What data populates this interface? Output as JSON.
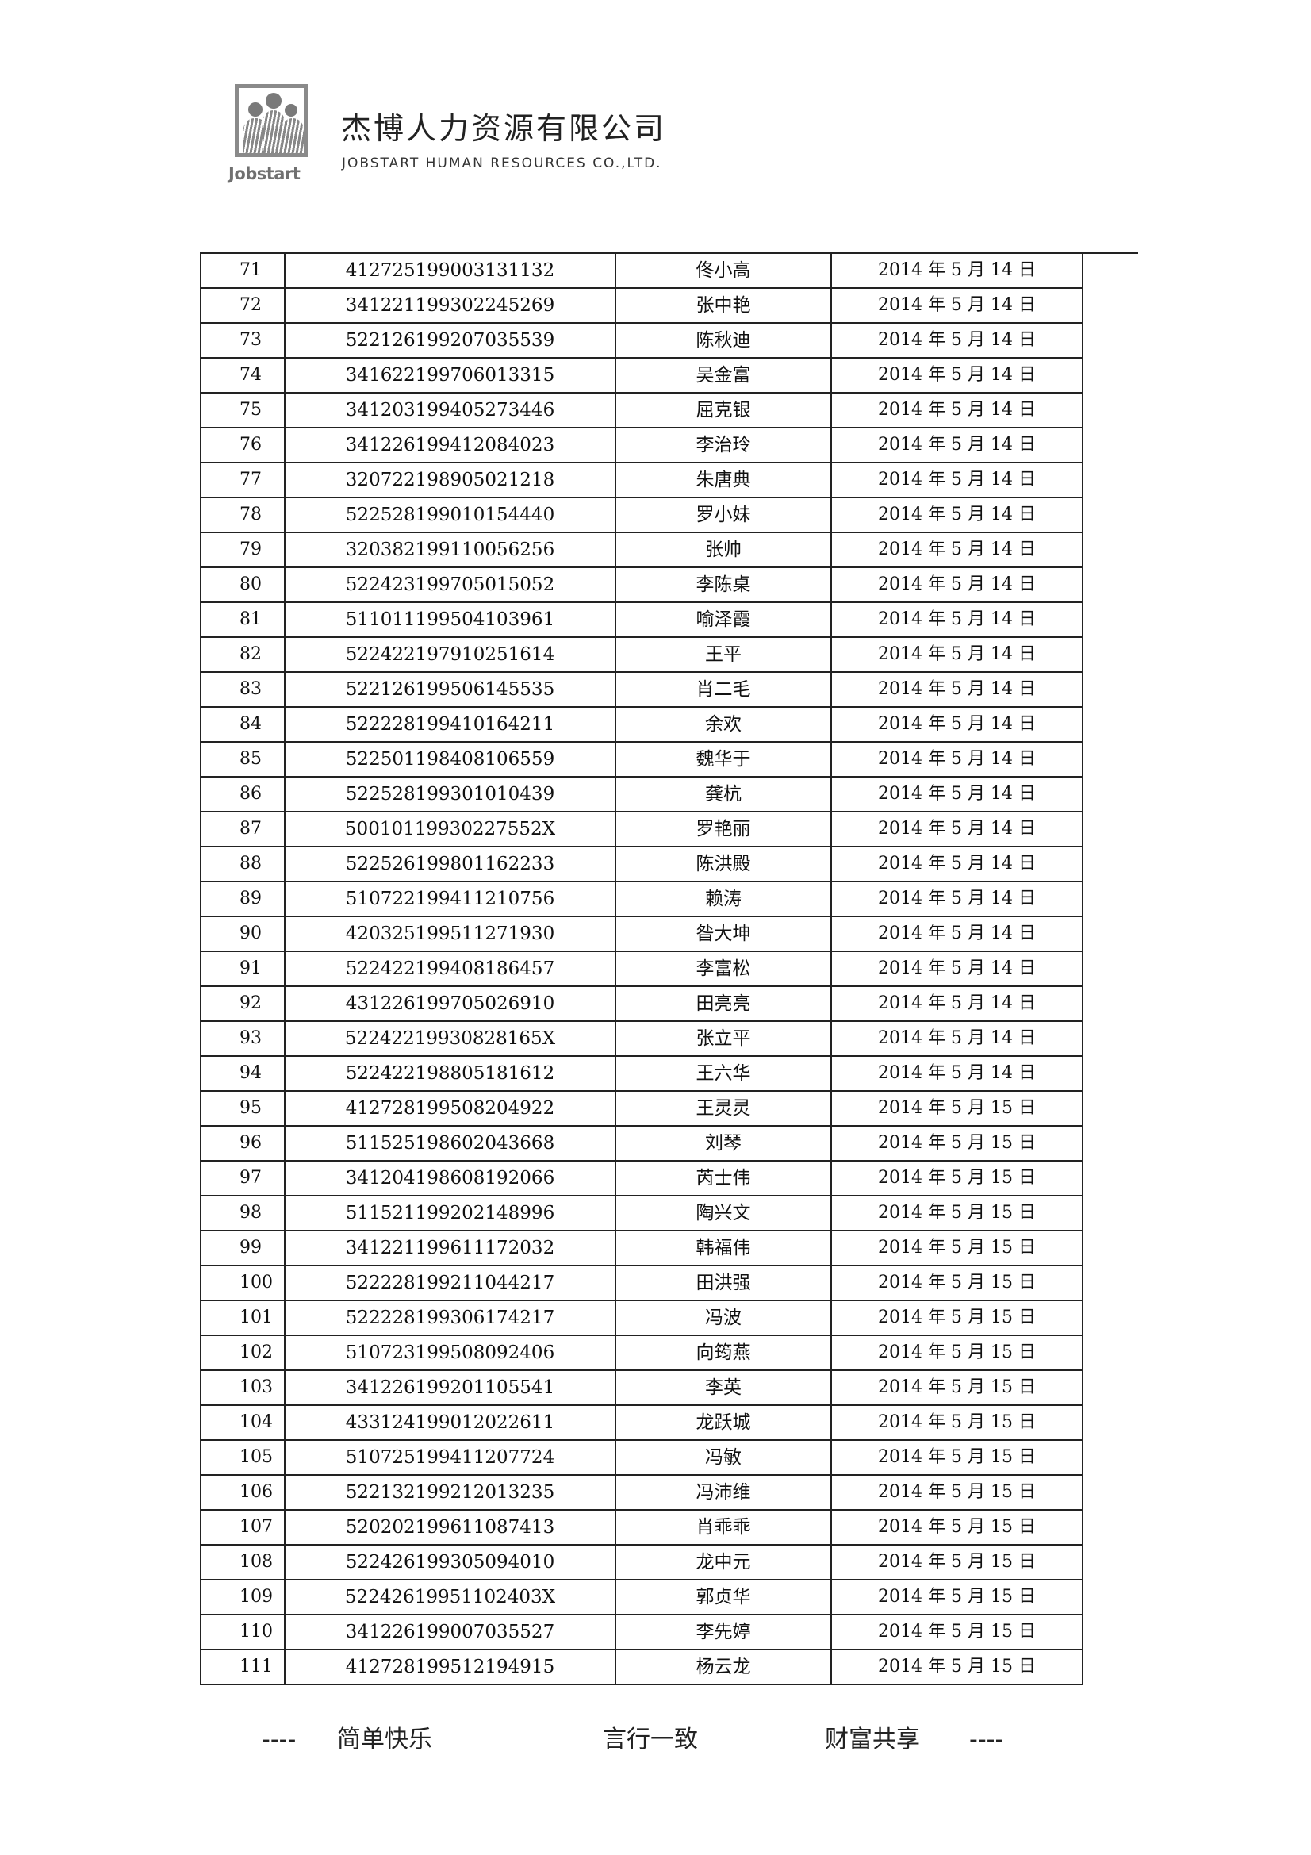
{
  "header": {
    "logo_text": "Jobstart",
    "company_cn": "杰博人力资源有限公司",
    "company_en": "JOBSTART HUMAN RESOURCES CO.,LTD."
  },
  "table": {
    "rows": [
      [
        "71",
        "412725199003131132",
        "佟小高",
        "2014 年 5 月 14 日"
      ],
      [
        "72",
        "341221199302245269",
        "张中艳",
        "2014 年 5 月 14 日"
      ],
      [
        "73",
        "522126199207035539",
        "陈秋迪",
        "2014 年 5 月 14 日"
      ],
      [
        "74",
        "341622199706013315",
        "吴金富",
        "2014 年 5 月 14 日"
      ],
      [
        "75",
        "341203199405273446",
        "屈克银",
        "2014 年 5 月 14 日"
      ],
      [
        "76",
        "341226199412084023",
        "李治玲",
        "2014 年 5 月 14 日"
      ],
      [
        "77",
        "320722198905021218",
        "朱唐典",
        "2014 年 5 月 14 日"
      ],
      [
        "78",
        "522528199010154440",
        "罗小妹",
        "2014 年 5 月 14 日"
      ],
      [
        "79",
        "320382199110056256",
        "张帅",
        "2014 年 5 月 14 日"
      ],
      [
        "80",
        "522423199705015052",
        "李陈桌",
        "2014 年 5 月 14 日"
      ],
      [
        "81",
        "511011199504103961",
        "喻泽霞",
        "2014 年 5 月 14 日"
      ],
      [
        "82",
        "522422197910251614",
        "王平",
        "2014 年 5 月 14 日"
      ],
      [
        "83",
        "522126199506145535",
        "肖二毛",
        "2014 年 5 月 14 日"
      ],
      [
        "84",
        "522228199410164211",
        "余欢",
        "2014 年 5 月 14 日"
      ],
      [
        "85",
        "522501198408106559",
        "魏华于",
        "2014 年 5 月 14 日"
      ],
      [
        "86",
        "522528199301010439",
        "龚杭",
        "2014 年 5 月 14 日"
      ],
      [
        "87",
        "50010119930227552X",
        "罗艳丽",
        "2014 年 5 月 14 日"
      ],
      [
        "88",
        "522526199801162233",
        "陈洪殿",
        "2014 年 5 月 14 日"
      ],
      [
        "89",
        "510722199411210756",
        "赖涛",
        "2014 年 5 月 14 日"
      ],
      [
        "90",
        "420325199511271930",
        "昝大坤",
        "2014 年 5 月 14 日"
      ],
      [
        "91",
        "522422199408186457",
        "李富松",
        "2014 年 5 月 14 日"
      ],
      [
        "92",
        "431226199705026910",
        "田亮亮",
        "2014 年 5 月 14 日"
      ],
      [
        "93",
        "52242219930828165X",
        "张立平",
        "2014 年 5 月 14 日"
      ],
      [
        "94",
        "522422198805181612",
        "王六华",
        "2014 年 5 月 14 日"
      ],
      [
        "95",
        "412728199508204922",
        "王灵灵",
        "2014 年 5 月 15 日"
      ],
      [
        "96",
        "511525198602043668",
        "刘琴",
        "2014 年 5 月 15 日"
      ],
      [
        "97",
        "341204198608192066",
        "芮士伟",
        "2014 年 5 月 15 日"
      ],
      [
        "98",
        "511521199202148996",
        "陶兴文",
        "2014 年 5 月 15 日"
      ],
      [
        "99",
        "341221199611172032",
        "韩福伟",
        "2014 年 5 月 15 日"
      ],
      [
        "100",
        "522228199211044217",
        "田洪强",
        "2014 年 5 月 15 日"
      ],
      [
        "101",
        "522228199306174217",
        "冯波",
        "2014 年 5 月 15 日"
      ],
      [
        "102",
        "510723199508092406",
        "向筠燕",
        "2014 年 5 月 15 日"
      ],
      [
        "103",
        "341226199201105541",
        "李英",
        "2014 年 5 月 15 日"
      ],
      [
        "104",
        "433124199012022611",
        "龙跃城",
        "2014 年 5 月 15 日"
      ],
      [
        "105",
        "510725199411207724",
        "冯敏",
        "2014 年 5 月 15 日"
      ],
      [
        "106",
        "522132199212013235",
        "冯沛维",
        "2014 年 5 月 15 日"
      ],
      [
        "107",
        "520202199611087413",
        "肖乖乖",
        "2014 年 5 月 15 日"
      ],
      [
        "108",
        "522426199305094010",
        "龙中元",
        "2014 年 5 月 15 日"
      ],
      [
        "109",
        "52242619951102403X",
        "郭贞华",
        "2014 年 5 月 15 日"
      ],
      [
        "110",
        "341226199007035527",
        "李先婷",
        "2014 年 5 月 15 日"
      ],
      [
        "111",
        "412728199512194915",
        "杨云龙",
        "2014 年 5 月 15 日"
      ]
    ]
  },
  "footer": {
    "dash_left": "----",
    "slogan_1": "简单快乐",
    "slogan_2": "言行一致",
    "slogan_3": "财富共享",
    "dash_right": "----"
  }
}
